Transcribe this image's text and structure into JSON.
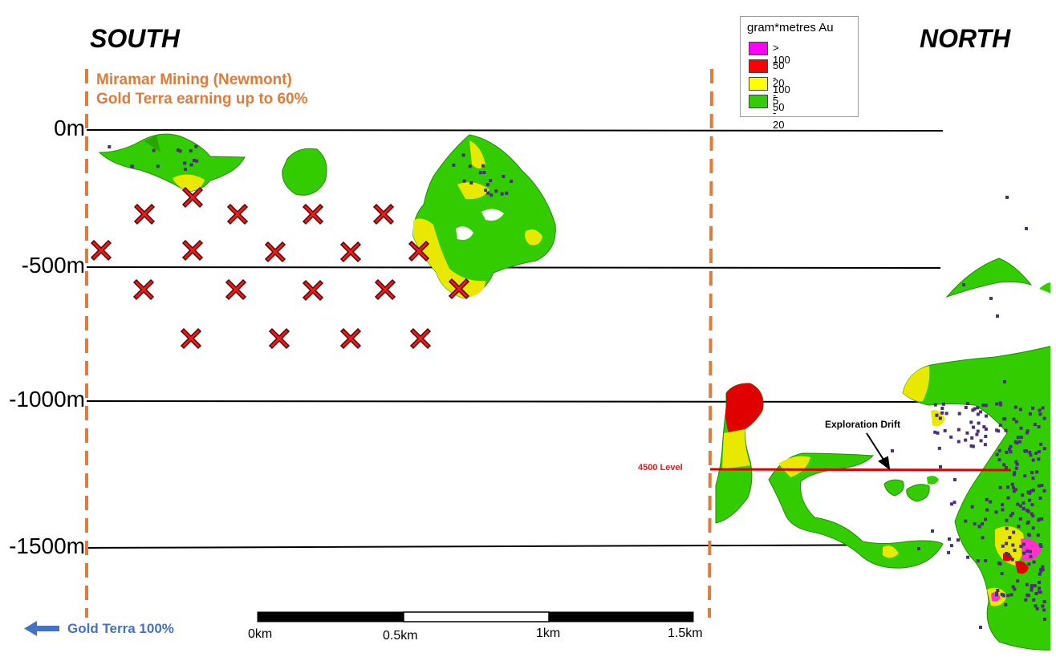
{
  "headings": {
    "south": "SOUTH",
    "north": "NORTH"
  },
  "ownership": {
    "line1": "Miramar Mining (Newmont)",
    "line2": "Gold Terra earning up to 60%",
    "gold_terra_100": "Gold Terra 100%"
  },
  "depth_labels": [
    "0m",
    "-500m",
    "-1000m",
    "-1500m"
  ],
  "legend": {
    "title": "gram*metres Au",
    "items": [
      {
        "label": "> 100",
        "color": "#ff00ff"
      },
      {
        "label": "50 - 100",
        "color": "#ff0000"
      },
      {
        "label": "20 - 50",
        "color": "#ffff00"
      },
      {
        "label": "5 - 20",
        "color": "#33cc00"
      }
    ]
  },
  "annotations": {
    "level": "4500 Level",
    "drift": "Exploration Drift"
  },
  "scale_bar": {
    "labels": [
      "0km",
      "0.5km",
      "1km",
      "1.5km"
    ]
  },
  "colors": {
    "boundary": "#e07b39",
    "green": "#33cc00",
    "green_dark": "#228b00",
    "yellow": "#e8e800",
    "red": "#e00000",
    "magenta": "#ff33cc",
    "purple": "#4b2f7f",
    "level_line": "#dd0000",
    "target_fill": "#e81e1e"
  }
}
